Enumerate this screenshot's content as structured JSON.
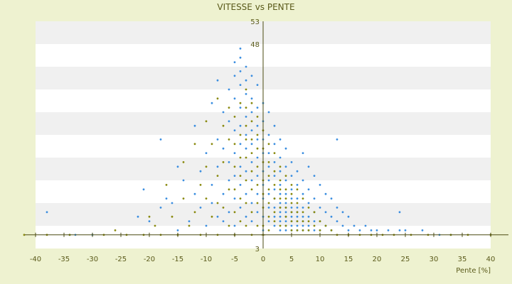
{
  "colors": {
    "background": "#eef2d0",
    "plot_band_light": "#ffffff",
    "plot_band_dark": "#f0f0f0",
    "axis": "#4a4a10",
    "series_blue": "#3b8ee0",
    "series_olive": "#8a8a10",
    "text": "#5a5a1a"
  },
  "chart_data": {
    "type": "scatter",
    "title": "VITESSE vs PENTE",
    "xlabel": "Pente [%]",
    "ylabel": "",
    "xlim": [
      -40,
      40
    ],
    "ylim": [
      3,
      53
    ],
    "x_ticks": [
      -40,
      -35,
      -30,
      -25,
      -20,
      -15,
      -10,
      -5,
      0,
      5,
      10,
      15,
      20,
      25,
      30,
      35,
      40
    ],
    "y_ticks": [
      3,
      8,
      13,
      18,
      23,
      28,
      33,
      38,
      43,
      48,
      53
    ],
    "y_tick_labels_shown": [
      "3",
      "48",
      "53"
    ],
    "grid": "horizontal bands",
    "legend": "none",
    "series": [
      {
        "color": "blue",
        "points": [
          [
            -38,
            11
          ],
          [
            -34,
            6
          ],
          [
            -33,
            6
          ],
          [
            -30,
            6
          ],
          [
            -22,
            10
          ],
          [
            -21,
            16
          ],
          [
            -20,
            9
          ],
          [
            -18,
            12
          ],
          [
            -18,
            27
          ],
          [
            -17,
            14
          ],
          [
            -16,
            13
          ],
          [
            -15,
            21
          ],
          [
            -15,
            7
          ],
          [
            -14,
            18
          ],
          [
            -13,
            9
          ],
          [
            -12,
            15
          ],
          [
            -12,
            30
          ],
          [
            -11,
            20
          ],
          [
            -11,
            12
          ],
          [
            -10,
            24
          ],
          [
            -10,
            8
          ],
          [
            -9,
            35
          ],
          [
            -9,
            17
          ],
          [
            -9,
            13
          ],
          [
            -8,
            40
          ],
          [
            -8,
            27
          ],
          [
            -8,
            21
          ],
          [
            -8,
            10
          ],
          [
            -7,
            33
          ],
          [
            -7,
            25
          ],
          [
            -7,
            15
          ],
          [
            -7,
            9
          ],
          [
            -6,
            38
          ],
          [
            -6,
            31
          ],
          [
            -6,
            22
          ],
          [
            -6,
            18
          ],
          [
            -6,
            11
          ],
          [
            -5,
            44
          ],
          [
            -5,
            41
          ],
          [
            -5,
            36
          ],
          [
            -5,
            29
          ],
          [
            -5,
            24
          ],
          [
            -5,
            19
          ],
          [
            -5,
            14
          ],
          [
            -5,
            8
          ],
          [
            -4,
            47
          ],
          [
            -4,
            45
          ],
          [
            -4,
            42
          ],
          [
            -4,
            39
          ],
          [
            -4,
            34
          ],
          [
            -4,
            30
          ],
          [
            -4,
            26
          ],
          [
            -4,
            21
          ],
          [
            -4,
            17
          ],
          [
            -4,
            12
          ],
          [
            -3,
            43
          ],
          [
            -3,
            40
          ],
          [
            -3,
            37
          ],
          [
            -3,
            32
          ],
          [
            -3,
            28
          ],
          [
            -3,
            25
          ],
          [
            -3,
            20
          ],
          [
            -3,
            15
          ],
          [
            -3,
            10
          ],
          [
            -2,
            41
          ],
          [
            -2,
            36
          ],
          [
            -2,
            33
          ],
          [
            -2,
            29
          ],
          [
            -2,
            26
          ],
          [
            -2,
            22
          ],
          [
            -2,
            18
          ],
          [
            -2,
            13
          ],
          [
            -2,
            9
          ],
          [
            -1,
            39
          ],
          [
            -1,
            34
          ],
          [
            -1,
            30
          ],
          [
            -1,
            27
          ],
          [
            -1,
            23
          ],
          [
            -1,
            19
          ],
          [
            -1,
            15
          ],
          [
            -1,
            11
          ],
          [
            0,
            35
          ],
          [
            0,
            31
          ],
          [
            0,
            27
          ],
          [
            0,
            24
          ],
          [
            0,
            20
          ],
          [
            0,
            17
          ],
          [
            0,
            14
          ],
          [
            0,
            10
          ],
          [
            0,
            7
          ],
          [
            1,
            33
          ],
          [
            1,
            28
          ],
          [
            1,
            24
          ],
          [
            1,
            21
          ],
          [
            1,
            18
          ],
          [
            1,
            15
          ],
          [
            1,
            12
          ],
          [
            1,
            9
          ],
          [
            2,
            30
          ],
          [
            2,
            26
          ],
          [
            2,
            22
          ],
          [
            2,
            19
          ],
          [
            2,
            16
          ],
          [
            2,
            14
          ],
          [
            2,
            12
          ],
          [
            2,
            10
          ],
          [
            2,
            8
          ],
          [
            3,
            27
          ],
          [
            3,
            23
          ],
          [
            3,
            20
          ],
          [
            3,
            17
          ],
          [
            3,
            15
          ],
          [
            3,
            13
          ],
          [
            3,
            12
          ],
          [
            3,
            11
          ],
          [
            3,
            10
          ],
          [
            3,
            9
          ],
          [
            3,
            7
          ],
          [
            4,
            25
          ],
          [
            4,
            21
          ],
          [
            4,
            18
          ],
          [
            4,
            15
          ],
          [
            4,
            13
          ],
          [
            4,
            12
          ],
          [
            4,
            11
          ],
          [
            4,
            10
          ],
          [
            4,
            9
          ],
          [
            4,
            8
          ],
          [
            4,
            7
          ],
          [
            5,
            22
          ],
          [
            5,
            19
          ],
          [
            5,
            16
          ],
          [
            5,
            14
          ],
          [
            5,
            12
          ],
          [
            5,
            11
          ],
          [
            5,
            10
          ],
          [
            5,
            9
          ],
          [
            5,
            8
          ],
          [
            5,
            7
          ],
          [
            6,
            20
          ],
          [
            6,
            17
          ],
          [
            6,
            14
          ],
          [
            6,
            12
          ],
          [
            6,
            11
          ],
          [
            6,
            10
          ],
          [
            6,
            9
          ],
          [
            6,
            8
          ],
          [
            6,
            7
          ],
          [
            7,
            24
          ],
          [
            7,
            18
          ],
          [
            7,
            15
          ],
          [
            7,
            12
          ],
          [
            7,
            10
          ],
          [
            7,
            9
          ],
          [
            7,
            8
          ],
          [
            7,
            7
          ],
          [
            8,
            21
          ],
          [
            8,
            16
          ],
          [
            8,
            13
          ],
          [
            8,
            10
          ],
          [
            8,
            8
          ],
          [
            8,
            7
          ],
          [
            9,
            19
          ],
          [
            9,
            14
          ],
          [
            9,
            11
          ],
          [
            9,
            9
          ],
          [
            9,
            7
          ],
          [
            10,
            17
          ],
          [
            10,
            12
          ],
          [
            10,
            9
          ],
          [
            10,
            7
          ],
          [
            11,
            15
          ],
          [
            11,
            11
          ],
          [
            11,
            8
          ],
          [
            12,
            14
          ],
          [
            12,
            10
          ],
          [
            12,
            7
          ],
          [
            13,
            27
          ],
          [
            13,
            12
          ],
          [
            13,
            9
          ],
          [
            14,
            11
          ],
          [
            14,
            8
          ],
          [
            15,
            10
          ],
          [
            15,
            7
          ],
          [
            16,
            8
          ],
          [
            17,
            7
          ],
          [
            18,
            8
          ],
          [
            19,
            7
          ],
          [
            20,
            7
          ],
          [
            22,
            7
          ],
          [
            24,
            11
          ],
          [
            24,
            7
          ],
          [
            25,
            7
          ],
          [
            28,
            7
          ],
          [
            31,
            6
          ],
          [
            33,
            6
          ]
        ]
      },
      {
        "color": "olive",
        "points": [
          [
            -42,
            6
          ],
          [
            -38,
            6
          ],
          [
            -34,
            6
          ],
          [
            -28,
            6
          ],
          [
            -26,
            7
          ],
          [
            -24,
            6
          ],
          [
            -21,
            6
          ],
          [
            -20,
            10
          ],
          [
            -19,
            8
          ],
          [
            -18,
            6
          ],
          [
            -17,
            17
          ],
          [
            -16,
            10
          ],
          [
            -15,
            6
          ],
          [
            -14,
            14
          ],
          [
            -14,
            22
          ],
          [
            -13,
            8
          ],
          [
            -12,
            26
          ],
          [
            -12,
            11
          ],
          [
            -11,
            17
          ],
          [
            -11,
            6
          ],
          [
            -10,
            31
          ],
          [
            -10,
            21
          ],
          [
            -10,
            14
          ],
          [
            -9,
            26
          ],
          [
            -9,
            10
          ],
          [
            -8,
            36
          ],
          [
            -8,
            19
          ],
          [
            -8,
            13
          ],
          [
            -8,
            6
          ],
          [
            -7,
            30
          ],
          [
            -7,
            22
          ],
          [
            -7,
            12
          ],
          [
            -6,
            34
          ],
          [
            -6,
            27
          ],
          [
            -6,
            16
          ],
          [
            -6,
            8
          ],
          [
            -5,
            32
          ],
          [
            -5,
            26
          ],
          [
            -5,
            21
          ],
          [
            -5,
            16
          ],
          [
            -5,
            11
          ],
          [
            -5,
            6
          ],
          [
            -4,
            35
          ],
          [
            -4,
            28
          ],
          [
            -4,
            23
          ],
          [
            -4,
            19
          ],
          [
            -4,
            14
          ],
          [
            -4,
            9
          ],
          [
            -3,
            38
          ],
          [
            -3,
            34
          ],
          [
            -3,
            30
          ],
          [
            -3,
            27
          ],
          [
            -3,
            23
          ],
          [
            -3,
            18
          ],
          [
            -3,
            13
          ],
          [
            -3,
            8
          ],
          [
            -2,
            35
          ],
          [
            -2,
            31
          ],
          [
            -2,
            27
          ],
          [
            -2,
            24
          ],
          [
            -2,
            20
          ],
          [
            -2,
            16
          ],
          [
            -2,
            11
          ],
          [
            -2,
            6
          ],
          [
            -1,
            32
          ],
          [
            -1,
            28
          ],
          [
            -1,
            25
          ],
          [
            -1,
            21
          ],
          [
            -1,
            17
          ],
          [
            -1,
            13
          ],
          [
            -1,
            8
          ],
          [
            0,
            29
          ],
          [
            0,
            25
          ],
          [
            0,
            22
          ],
          [
            0,
            18
          ],
          [
            0,
            15
          ],
          [
            0,
            12
          ],
          [
            0,
            8
          ],
          [
            0,
            6
          ],
          [
            1,
            26
          ],
          [
            1,
            22
          ],
          [
            1,
            19
          ],
          [
            1,
            16
          ],
          [
            1,
            13
          ],
          [
            1,
            10
          ],
          [
            1,
            7
          ],
          [
            2,
            24
          ],
          [
            2,
            20
          ],
          [
            2,
            17
          ],
          [
            2,
            14
          ],
          [
            2,
            11
          ],
          [
            2,
            9
          ],
          [
            3,
            21
          ],
          [
            3,
            18
          ],
          [
            3,
            16
          ],
          [
            3,
            14
          ],
          [
            3,
            12
          ],
          [
            3,
            8
          ],
          [
            4,
            19
          ],
          [
            4,
            16
          ],
          [
            4,
            14
          ],
          [
            4,
            12
          ],
          [
            4,
            10
          ],
          [
            4,
            8
          ],
          [
            5,
            17
          ],
          [
            5,
            15
          ],
          [
            5,
            13
          ],
          [
            5,
            11
          ],
          [
            5,
            9
          ],
          [
            5,
            7
          ],
          [
            6,
            16
          ],
          [
            6,
            13
          ],
          [
            6,
            11
          ],
          [
            6,
            9
          ],
          [
            6,
            7
          ],
          [
            7,
            14
          ],
          [
            7,
            11
          ],
          [
            7,
            9
          ],
          [
            7,
            7
          ],
          [
            8,
            12
          ],
          [
            8,
            9
          ],
          [
            8,
            7
          ],
          [
            9,
            11
          ],
          [
            9,
            8
          ],
          [
            10,
            9
          ],
          [
            10,
            7
          ],
          [
            11,
            8
          ],
          [
            12,
            7
          ],
          [
            13,
            6
          ],
          [
            15,
            6
          ],
          [
            17,
            6
          ],
          [
            19,
            6
          ],
          [
            21,
            6
          ],
          [
            23,
            6
          ],
          [
            26,
            6
          ],
          [
            29,
            6
          ],
          [
            33,
            6
          ],
          [
            36,
            6
          ],
          [
            40,
            6
          ],
          [
            44,
            6
          ]
        ]
      }
    ]
  }
}
